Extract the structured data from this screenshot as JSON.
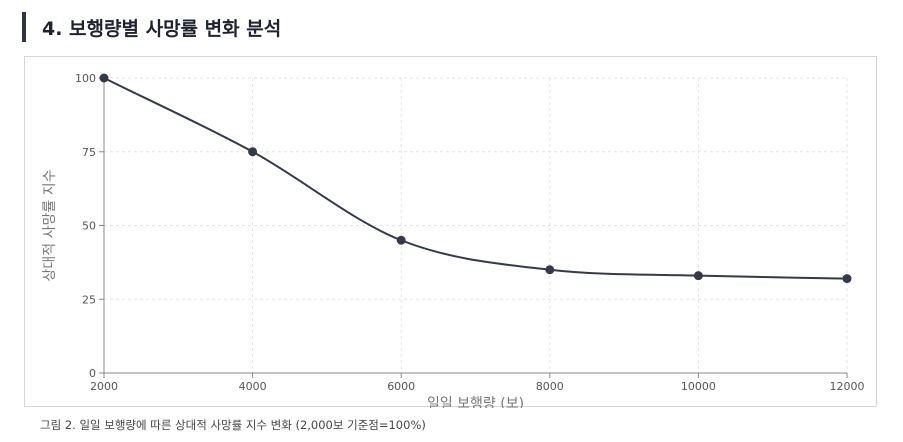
{
  "section": {
    "title": "4. 보행량별 사망률 변화 분석"
  },
  "caption": "그림 2. 일일 보행량에 따른 상대적 사망률 지수 변화 (2,000보 기준점=100%)",
  "colors": {
    "line": "#343a4a",
    "grid": "#e3e3e3",
    "axis": "#888888"
  },
  "chart_data": {
    "type": "line",
    "x": [
      2000,
      4000,
      6000,
      8000,
      10000,
      12000
    ],
    "series": [
      {
        "values": [
          100,
          75,
          45,
          35,
          33,
          32
        ]
      }
    ],
    "xlabel": "일일 보행량 (보)",
    "ylabel": "상대적 사망률 지수",
    "xlim": [
      2000,
      12000
    ],
    "ylim": [
      0,
      100
    ],
    "xticks": [
      2000,
      4000,
      6000,
      8000,
      10000,
      12000
    ],
    "yticks": [
      0,
      25,
      50,
      75,
      100
    ],
    "grid": true,
    "legend": false
  }
}
